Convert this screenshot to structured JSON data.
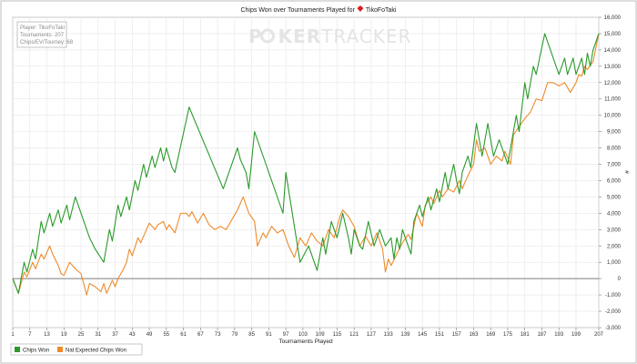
{
  "chart_data": {
    "type": "line",
    "title": "Chips Won over Tournaments Played for",
    "player_name": "TikoFoTaki",
    "watermark": {
      "part1": "P",
      "part2": "KER",
      "part3": "TRACKER"
    },
    "info_box": {
      "line1": "Player: TikoFoTaki",
      "line2": "Tournaments: 207",
      "line3": "Chips/EV/Tourney: 68"
    },
    "xlabel": "Tournaments Played",
    "ylabel": "#",
    "xlim": [
      1,
      207
    ],
    "ylim": [
      -3000,
      16000
    ],
    "x_ticks": [
      1,
      7,
      13,
      19,
      25,
      31,
      37,
      43,
      49,
      55,
      61,
      67,
      73,
      79,
      85,
      91,
      97,
      103,
      109,
      115,
      121,
      127,
      133,
      139,
      145,
      151,
      157,
      163,
      169,
      175,
      181,
      187,
      193,
      199,
      207
    ],
    "y_ticks": [
      -3000,
      -2000,
      -1000,
      0,
      1000,
      2000,
      3000,
      4000,
      5000,
      6000,
      7000,
      8000,
      9000,
      10000,
      11000,
      12000,
      13000,
      14000,
      15000,
      16000
    ],
    "y_tick_labels": [
      "-3,000",
      "-2,000",
      "-1,000",
      "0",
      "1,000",
      "2,000",
      "3,000",
      "4,000",
      "5,000",
      "6,000",
      "7,000",
      "8,000",
      "9,000",
      "10,000",
      "11,000",
      "12,000",
      "13,000",
      "14,000",
      "15,000",
      "16,000"
    ],
    "grid": true,
    "zero_line": true,
    "legend_position": "bottom-left",
    "series": [
      {
        "name": "Chips Won",
        "color": "#2a9a2a",
        "points": [
          [
            1,
            0
          ],
          [
            3,
            -900
          ],
          [
            5,
            1000
          ],
          [
            6,
            400
          ],
          [
            8,
            1800
          ],
          [
            9,
            1200
          ],
          [
            11,
            3500
          ],
          [
            12,
            2800
          ],
          [
            14,
            4000
          ],
          [
            15,
            3200
          ],
          [
            17,
            4200
          ],
          [
            18,
            3400
          ],
          [
            20,
            4500
          ],
          [
            21,
            3600
          ],
          [
            23,
            5000
          ],
          [
            26,
            3500
          ],
          [
            28,
            2500
          ],
          [
            30,
            1800
          ],
          [
            33,
            1000
          ],
          [
            35,
            3000
          ],
          [
            36,
            2300
          ],
          [
            38,
            4500
          ],
          [
            39,
            3800
          ],
          [
            41,
            5000
          ],
          [
            42,
            4200
          ],
          [
            44,
            6000
          ],
          [
            45,
            5400
          ],
          [
            47,
            7000
          ],
          [
            48,
            6200
          ],
          [
            50,
            7500
          ],
          [
            51,
            6800
          ],
          [
            53,
            8000
          ],
          [
            54,
            7200
          ],
          [
            55,
            8000
          ],
          [
            57,
            6800
          ],
          [
            58,
            6500
          ],
          [
            63,
            10500
          ],
          [
            75,
            5500
          ],
          [
            80,
            8000
          ],
          [
            81,
            7300
          ],
          [
            83,
            6500
          ],
          [
            84,
            5500
          ],
          [
            86,
            9000
          ],
          [
            96,
            4000
          ],
          [
            97,
            6500
          ],
          [
            102,
            1000
          ],
          [
            105,
            2000
          ],
          [
            108,
            500
          ],
          [
            110,
            2500
          ],
          [
            111,
            1500
          ],
          [
            113,
            3500
          ],
          [
            115,
            2500
          ],
          [
            117,
            4000
          ],
          [
            119,
            2500
          ],
          [
            120,
            1500
          ],
          [
            121,
            3000
          ],
          [
            123,
            2000
          ],
          [
            124,
            1800
          ],
          [
            126,
            3500
          ],
          [
            128,
            2000
          ],
          [
            130,
            3000
          ],
          [
            132,
            2000
          ],
          [
            134,
            2500
          ],
          [
            135,
            1200
          ],
          [
            136,
            2500
          ],
          [
            137,
            1800
          ],
          [
            138,
            3000
          ],
          [
            141,
            1500
          ],
          [
            142,
            3500
          ],
          [
            144,
            4500
          ],
          [
            145,
            3800
          ],
          [
            147,
            5000
          ],
          [
            148,
            4200
          ],
          [
            150,
            5500
          ],
          [
            151,
            4700
          ],
          [
            153,
            6500
          ],
          [
            154,
            5500
          ],
          [
            156,
            7000
          ],
          [
            157,
            6000
          ],
          [
            158,
            5200
          ],
          [
            159,
            6500
          ],
          [
            161,
            7500
          ],
          [
            162,
            6800
          ],
          [
            164,
            9500
          ],
          [
            166,
            7500
          ],
          [
            168,
            9500
          ],
          [
            170,
            7500
          ],
          [
            172,
            8500
          ],
          [
            175,
            7000
          ],
          [
            178,
            10000
          ],
          [
            179,
            9000
          ],
          [
            181,
            12000
          ],
          [
            182,
            11000
          ],
          [
            184,
            13000
          ],
          [
            185,
            12500
          ],
          [
            188,
            15000
          ],
          [
            193,
            12500
          ],
          [
            195,
            13500
          ],
          [
            196,
            12500
          ],
          [
            198,
            13500
          ],
          [
            199,
            12500
          ],
          [
            201,
            13500
          ],
          [
            202,
            12500
          ],
          [
            203,
            13800
          ],
          [
            204,
            13000
          ],
          [
            205,
            14000
          ],
          [
            207,
            15000
          ]
        ]
      },
      {
        "name": "Nat Expected Chips Won",
        "color": "#ee8a2a",
        "points": [
          [
            1,
            0
          ],
          [
            3,
            -900
          ],
          [
            5,
            400
          ],
          [
            6,
            100
          ],
          [
            8,
            1000
          ],
          [
            9,
            600
          ],
          [
            11,
            1500
          ],
          [
            12,
            1200
          ],
          [
            14,
            2000
          ],
          [
            15,
            1500
          ],
          [
            17,
            800
          ],
          [
            18,
            300
          ],
          [
            19,
            200
          ],
          [
            21,
            1000
          ],
          [
            23,
            600
          ],
          [
            25,
            300
          ],
          [
            27,
            -1000
          ],
          [
            28,
            -300
          ],
          [
            30,
            -500
          ],
          [
            32,
            -800
          ],
          [
            33,
            -300
          ],
          [
            34,
            -900
          ],
          [
            36,
            -100
          ],
          [
            37,
            -500
          ],
          [
            38,
            0
          ],
          [
            40,
            600
          ],
          [
            41,
            1000
          ],
          [
            42,
            1800
          ],
          [
            43,
            1400
          ],
          [
            45,
            2500
          ],
          [
            46,
            2200
          ],
          [
            48,
            3000
          ],
          [
            49,
            3400
          ],
          [
            51,
            3000
          ],
          [
            52,
            3300
          ],
          [
            54,
            3500
          ],
          [
            55,
            3000
          ],
          [
            56,
            3300
          ],
          [
            58,
            2800
          ],
          [
            60,
            4000
          ],
          [
            62,
            4000
          ],
          [
            63,
            3800
          ],
          [
            64,
            4100
          ],
          [
            66,
            3400
          ],
          [
            68,
            4000
          ],
          [
            70,
            3300
          ],
          [
            72,
            3000
          ],
          [
            74,
            3200
          ],
          [
            76,
            3000
          ],
          [
            78,
            3600
          ],
          [
            80,
            4200
          ],
          [
            82,
            5000
          ],
          [
            84,
            4000
          ],
          [
            86,
            3500
          ],
          [
            87,
            2000
          ],
          [
            89,
            2800
          ],
          [
            90,
            2500
          ],
          [
            92,
            3200
          ],
          [
            94,
            2800
          ],
          [
            96,
            3000
          ],
          [
            97,
            2500
          ],
          [
            98,
            2000
          ],
          [
            100,
            1300
          ],
          [
            102,
            2500
          ],
          [
            104,
            2000
          ],
          [
            106,
            2800
          ],
          [
            108,
            2300
          ],
          [
            110,
            2000
          ],
          [
            112,
            3000
          ],
          [
            114,
            2500
          ],
          [
            116,
            3800
          ],
          [
            117,
            4200
          ],
          [
            119,
            3800
          ],
          [
            121,
            3200
          ],
          [
            123,
            2000
          ],
          [
            125,
            2600
          ],
          [
            127,
            2000
          ],
          [
            129,
            2800
          ],
          [
            131,
            1800
          ],
          [
            132,
            400
          ],
          [
            133,
            1200
          ],
          [
            134,
            800
          ],
          [
            136,
            1500
          ],
          [
            138,
            2200
          ],
          [
            140,
            2700
          ],
          [
            141,
            2400
          ],
          [
            143,
            4000
          ],
          [
            145,
            3200
          ],
          [
            146,
            4500
          ],
          [
            148,
            5000
          ],
          [
            149,
            4600
          ],
          [
            151,
            5400
          ],
          [
            152,
            5000
          ],
          [
            154,
            5500
          ],
          [
            156,
            5300
          ],
          [
            158,
            6000
          ],
          [
            159,
            5500
          ],
          [
            161,
            6300
          ],
          [
            163,
            7000
          ],
          [
            164,
            8500
          ],
          [
            165,
            7800
          ],
          [
            167,
            8000
          ],
          [
            169,
            7000
          ],
          [
            171,
            7500
          ],
          [
            173,
            7200
          ],
          [
            174,
            7800
          ],
          [
            176,
            7000
          ],
          [
            177,
            8800
          ],
          [
            179,
            9300
          ],
          [
            181,
            9800
          ],
          [
            183,
            10200
          ],
          [
            184,
            10600
          ],
          [
            185,
            11000
          ],
          [
            187,
            10900
          ],
          [
            189,
            12000
          ],
          [
            191,
            12000
          ],
          [
            193,
            11800
          ],
          [
            195,
            12000
          ],
          [
            197,
            11400
          ],
          [
            199,
            12000
          ],
          [
            200,
            12500
          ],
          [
            201,
            12400
          ],
          [
            202,
            13000
          ],
          [
            203,
            12800
          ],
          [
            205,
            13300
          ],
          [
            207,
            15000
          ]
        ]
      }
    ]
  }
}
